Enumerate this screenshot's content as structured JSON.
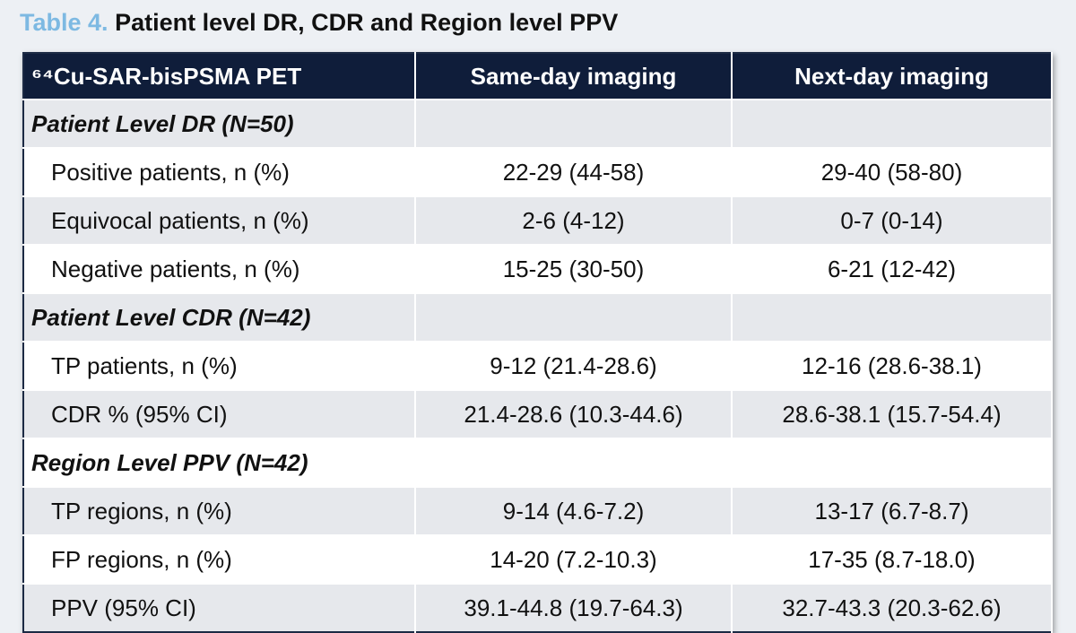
{
  "caption": {
    "label": "Table 4.",
    "title": "Patient level DR, CDR and Region level PPV"
  },
  "table": {
    "header": [
      "⁶⁴Cu-SAR-bisPSMA PET",
      "Same-day imaging",
      "Next-day imaging"
    ],
    "sections": [
      {
        "heading": "Patient Level DR (N=50)",
        "rows": [
          [
            "Positive patients, n (%)",
            "22-29 (44-58)",
            "29-40 (58-80)"
          ],
          [
            "Equivocal patients, n (%)",
            "2-6 (4-12)",
            "0-7 (0-14)"
          ],
          [
            "Negative patients, n (%)",
            "15-25 (30-50)",
            "6-21 (12-42)"
          ]
        ]
      },
      {
        "heading": "Patient Level CDR (N=42)",
        "rows": [
          [
            "TP patients, n (%)",
            "9-12 (21.4-28.6)",
            "12-16 (28.6-38.1)"
          ],
          [
            "CDR % (95% CI)",
            "21.4-28.6 (10.3-44.6)",
            "28.6-38.1 (15.7-54.4)"
          ]
        ]
      },
      {
        "heading": "Region Level PPV (N=42)",
        "rows": [
          [
            "TP regions, n (%)",
            "9-14 (4.6-7.2)",
            "13-17 (6.7-8.7)"
          ],
          [
            "FP regions, n (%)",
            "14-20 (7.2-10.3)",
            "17-35 (8.7-18.0)"
          ],
          [
            "PPV (95% CI)",
            "39.1-44.8 (19.7-64.3)",
            "32.7-43.3 (20.3-62.6)"
          ]
        ]
      }
    ]
  }
}
